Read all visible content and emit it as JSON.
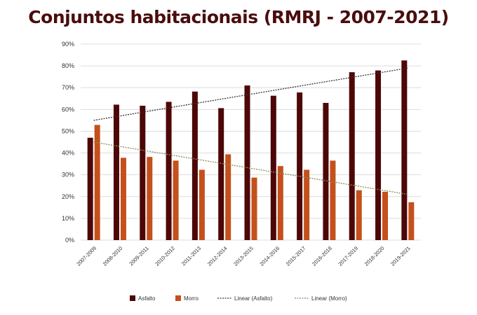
{
  "chart_data": {
    "type": "bar",
    "title": "Conjuntos habitacionais (RMRJ - 2007-2021)",
    "xlabel": "",
    "ylabel": "",
    "ylim": [
      0,
      90
    ],
    "yticks": [
      "0%",
      "10%",
      "20%",
      "30%",
      "40%",
      "50%",
      "60%",
      "70%",
      "80%",
      "90%"
    ],
    "categories": [
      "2007-2009",
      "2008-2010",
      "2009-2011",
      "2010-2012",
      "2011-2013",
      "2012-2014",
      "2013-2015",
      "2014-2016",
      "2015-2017",
      "2016-2018",
      "2017-2019",
      "2018-2020",
      "2019-2021"
    ],
    "series": [
      {
        "name": "Asfalto",
        "color": "#4d0707",
        "values": [
          47,
          62.2,
          61.7,
          63.5,
          68.2,
          60.6,
          71,
          66.3,
          67.8,
          63,
          77.1,
          77.9,
          82.5
        ]
      },
      {
        "name": "Morro",
        "color": "#c4501c",
        "values": [
          52.9,
          37.8,
          38.2,
          36.5,
          32.3,
          39.4,
          28.7,
          34,
          32.3,
          36.5,
          22.9,
          22.2,
          17.4
        ]
      }
    ],
    "trendlines": [
      {
        "name": "Linear (Asfalto)",
        "color": "#333333",
        "start": 55,
        "end": 79
      },
      {
        "name": "Linear (Morro)",
        "color": "#8a8a5a",
        "start": 45,
        "end": 21
      }
    ],
    "grid": true,
    "legend": "bottom"
  }
}
